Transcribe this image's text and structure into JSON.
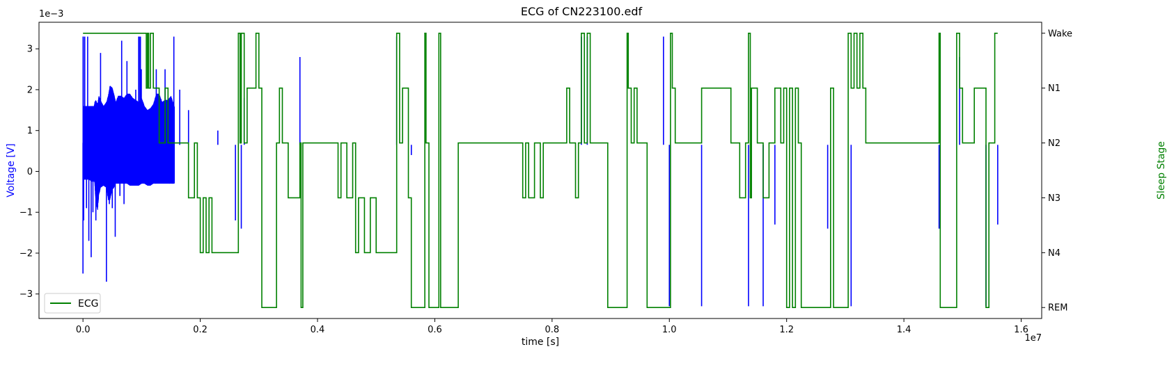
{
  "chart_data": {
    "type": "line",
    "title": "ECG of CN223100.edf",
    "xlabel": "time [s]",
    "ylabel_left": "Voltage [V]",
    "ylabel_right": "Sleep Stage",
    "x_scale_label": "1e7",
    "y_scale_label": "1e−3",
    "x_ticks": [
      0.0,
      0.2,
      0.4,
      0.6,
      0.8,
      1.0,
      1.2,
      1.4,
      1.6
    ],
    "x_tick_labels": [
      "0.0",
      "0.2",
      "0.4",
      "0.6",
      "0.8",
      "1.0",
      "1.2",
      "1.4",
      "1.6"
    ],
    "y_ticks": [
      -3,
      -2,
      -1,
      0,
      1,
      2,
      3
    ],
    "y_tick_labels": [
      "−3",
      "−2",
      "−1",
      "0",
      "1",
      "2",
      "3"
    ],
    "xlim": [
      -0.075,
      1.635
    ],
    "ylim_left": [
      -3.6,
      3.65
    ],
    "ylim_right": [
      -0.2,
      5.2
    ],
    "colors": {
      "ecg": "#0000ff",
      "stage": "#008000",
      "left_label": "#0000ff",
      "right_label": "#008000"
    },
    "legend": {
      "placement": "lower-left",
      "entries": [
        "ECG"
      ]
    },
    "grid": false,
    "series": [
      {
        "axis": "left",
        "color": "#0000ff",
        "envelope": {
          "x": [
            0.0,
            0.02,
            0.05,
            0.1,
            0.15,
            0.19,
            0.2,
            0.22,
            0.25,
            0.27,
            0.3,
            0.35,
            0.4,
            0.43,
            0.46,
            0.5,
            0.53,
            0.56,
            0.6,
            0.65,
            0.7,
            0.75,
            0.8,
            0.85,
            0.9,
            0.95,
            1.0,
            1.05,
            1.1,
            1.15,
            1.2,
            1.25,
            1.3,
            1.35,
            1.4,
            1.45,
            1.5,
            1.56
          ],
          "upper": [
            1.6,
            1.6,
            1.6,
            1.6,
            1.6,
            1.6,
            1.7,
            1.75,
            1.65,
            1.85,
            1.75,
            1.6,
            1.7,
            1.85,
            2.1,
            2.05,
            1.9,
            1.7,
            1.85,
            1.85,
            1.8,
            1.9,
            1.9,
            1.8,
            1.75,
            1.7,
            1.8,
            1.6,
            1.5,
            1.55,
            1.65,
            1.9,
            1.9,
            1.7,
            1.75,
            1.75,
            1.85,
            1.6
          ],
          "lower": [
            -0.2,
            -0.2,
            -0.2,
            -0.2,
            -0.25,
            -0.25,
            -0.3,
            -0.8,
            -0.95,
            -0.6,
            -0.4,
            -0.35,
            -0.4,
            -0.7,
            -0.7,
            -0.45,
            -0.4,
            -0.3,
            -0.3,
            -0.3,
            -0.3,
            -0.3,
            -0.35,
            -0.35,
            -0.35,
            -0.35,
            -0.3,
            -0.3,
            -0.35,
            -0.35,
            -0.3,
            -0.3,
            -0.3,
            -0.3,
            -0.3,
            -0.3,
            -0.3,
            -0.3
          ]
        },
        "spikes": [
          [
            0.0,
            -2.5
          ],
          [
            0.002,
            3.3
          ],
          [
            0.005,
            3.3
          ],
          [
            0.012,
            -1.2
          ],
          [
            0.03,
            3.3
          ],
          [
            0.06,
            -0.9
          ],
          [
            0.08,
            3.3
          ],
          [
            0.1,
            -1.7
          ],
          [
            0.14,
            -2.1
          ],
          [
            0.17,
            -1.0
          ],
          [
            0.22,
            -1.2
          ],
          [
            0.3,
            2.9
          ],
          [
            0.4,
            -2.7
          ],
          [
            0.45,
            -0.8
          ],
          [
            0.5,
            -0.9
          ],
          [
            0.55,
            -1.6
          ],
          [
            0.63,
            -0.6
          ],
          [
            0.66,
            3.2
          ],
          [
            0.7,
            -0.8
          ],
          [
            0.75,
            2.7
          ],
          [
            0.9,
            2.0
          ],
          [
            0.95,
            3.3
          ],
          [
            0.96,
            3.3
          ],
          [
            0.98,
            3.3
          ],
          [
            0.995,
            2.5
          ],
          [
            1.25,
            2.5
          ],
          [
            1.4,
            2.5
          ],
          [
            1.55,
            3.3
          ],
          [
            1.65,
            2.0
          ],
          [
            1.8,
            1.5
          ],
          [
            2.3,
            1.0
          ],
          [
            2.6,
            -1.2
          ],
          [
            2.7,
            -1.4
          ],
          [
            2.75,
            1.8
          ],
          [
            3.7,
            2.8
          ],
          [
            5.35,
            3.3
          ],
          [
            5.6,
            0.4
          ],
          [
            8.5,
            3.3
          ],
          [
            8.6,
            3.3
          ],
          [
            9.9,
            3.3
          ],
          [
            10.0,
            -3.3
          ],
          [
            10.55,
            -3.3
          ],
          [
            11.35,
            -3.3
          ],
          [
            11.6,
            -3.3
          ],
          [
            11.8,
            -1.3
          ],
          [
            12.7,
            -1.4
          ],
          [
            13.1,
            -3.3
          ],
          [
            14.6,
            -1.4
          ],
          [
            14.95,
            2.8
          ],
          [
            15.4,
            -3.3
          ],
          [
            15.6,
            -1.3
          ]
        ]
      },
      {
        "axis": "right",
        "name": "ECG",
        "color": "#008000",
        "stage_ticks": [
          0,
          1,
          2,
          3,
          4,
          5
        ],
        "stage_tick_labels": [
          "REM",
          "N4",
          "N3",
          "N2",
          "N1",
          "Wake"
        ],
        "steps": [
          [
            0.0,
            5
          ],
          [
            0.95,
            5
          ],
          [
            1.0,
            5
          ],
          [
            1.05,
            5
          ],
          [
            1.08,
            4
          ],
          [
            1.1,
            5
          ],
          [
            1.12,
            4
          ],
          [
            1.15,
            5
          ],
          [
            1.2,
            4
          ],
          [
            1.3,
            3
          ],
          [
            1.4,
            4
          ],
          [
            1.45,
            3
          ],
          [
            1.8,
            2
          ],
          [
            1.9,
            3
          ],
          [
            1.95,
            2
          ],
          [
            2.0,
            1
          ],
          [
            2.05,
            2
          ],
          [
            2.1,
            1
          ],
          [
            2.15,
            2
          ],
          [
            2.2,
            1
          ],
          [
            2.5,
            1
          ],
          [
            2.6,
            1
          ],
          [
            2.65,
            5
          ],
          [
            2.68,
            3
          ],
          [
            2.7,
            5
          ],
          [
            2.75,
            3
          ],
          [
            2.8,
            4
          ],
          [
            2.9,
            4
          ],
          [
            2.95,
            5
          ],
          [
            3.0,
            4
          ],
          [
            3.05,
            0
          ],
          [
            3.25,
            0
          ],
          [
            3.3,
            3
          ],
          [
            3.35,
            4
          ],
          [
            3.4,
            3
          ],
          [
            3.5,
            2
          ],
          [
            3.7,
            3
          ],
          [
            3.72,
            0
          ],
          [
            3.75,
            3
          ],
          [
            4.3,
            3
          ],
          [
            4.35,
            2
          ],
          [
            4.4,
            3
          ],
          [
            4.5,
            2
          ],
          [
            4.6,
            3
          ],
          [
            4.65,
            1
          ],
          [
            4.7,
            2
          ],
          [
            4.8,
            1
          ],
          [
            4.9,
            2
          ],
          [
            5.0,
            1
          ],
          [
            5.3,
            1
          ],
          [
            5.35,
            5
          ],
          [
            5.4,
            3
          ],
          [
            5.45,
            4
          ],
          [
            5.55,
            2
          ],
          [
            5.6,
            0
          ],
          [
            5.8,
            0
          ],
          [
            5.83,
            5
          ],
          [
            5.85,
            3
          ],
          [
            5.9,
            0
          ],
          [
            6.05,
            0
          ],
          [
            6.07,
            5
          ],
          [
            6.1,
            0
          ],
          [
            6.35,
            0
          ],
          [
            6.4,
            3
          ],
          [
            7.3,
            3
          ],
          [
            7.5,
            2
          ],
          [
            7.55,
            3
          ],
          [
            7.6,
            2
          ],
          [
            7.7,
            3
          ],
          [
            7.8,
            2
          ],
          [
            7.85,
            3
          ],
          [
            8.2,
            3
          ],
          [
            8.25,
            4
          ],
          [
            8.3,
            3
          ],
          [
            8.4,
            2
          ],
          [
            8.45,
            3
          ],
          [
            8.5,
            5
          ],
          [
            8.55,
            3
          ],
          [
            8.6,
            5
          ],
          [
            8.65,
            3
          ],
          [
            8.9,
            3
          ],
          [
            8.95,
            0
          ],
          [
            9.25,
            0
          ],
          [
            9.28,
            5
          ],
          [
            9.3,
            4
          ],
          [
            9.35,
            3
          ],
          [
            9.4,
            4
          ],
          [
            9.45,
            3
          ],
          [
            9.6,
            3
          ],
          [
            9.62,
            0
          ],
          [
            10.0,
            0
          ],
          [
            10.02,
            5
          ],
          [
            10.05,
            4
          ],
          [
            10.1,
            3
          ],
          [
            10.5,
            3
          ],
          [
            10.55,
            4
          ],
          [
            11.0,
            4
          ],
          [
            11.05,
            3
          ],
          [
            11.2,
            2
          ],
          [
            11.3,
            3
          ],
          [
            11.35,
            5
          ],
          [
            11.38,
            2
          ],
          [
            11.4,
            4
          ],
          [
            11.5,
            3
          ],
          [
            11.6,
            2
          ],
          [
            11.7,
            3
          ],
          [
            11.8,
            4
          ],
          [
            11.9,
            3
          ],
          [
            11.95,
            4
          ],
          [
            12.0,
            0
          ],
          [
            12.05,
            4
          ],
          [
            12.1,
            0
          ],
          [
            12.15,
            4
          ],
          [
            12.2,
            3
          ],
          [
            12.25,
            0
          ],
          [
            12.7,
            0
          ],
          [
            12.75,
            4
          ],
          [
            12.8,
            0
          ],
          [
            13.0,
            0
          ],
          [
            13.05,
            5
          ],
          [
            13.1,
            4
          ],
          [
            13.15,
            5
          ],
          [
            13.2,
            4
          ],
          [
            13.25,
            5
          ],
          [
            13.3,
            4
          ],
          [
            13.35,
            3
          ],
          [
            13.9,
            3
          ],
          [
            14.0,
            3
          ],
          [
            14.5,
            3
          ],
          [
            14.6,
            5
          ],
          [
            14.62,
            0
          ],
          [
            14.85,
            0
          ],
          [
            14.9,
            5
          ],
          [
            14.95,
            4
          ],
          [
            15.0,
            3
          ],
          [
            15.2,
            4
          ],
          [
            15.4,
            0
          ],
          [
            15.45,
            3
          ],
          [
            15.55,
            5
          ],
          [
            15.6,
            5
          ]
        ]
      }
    ]
  }
}
